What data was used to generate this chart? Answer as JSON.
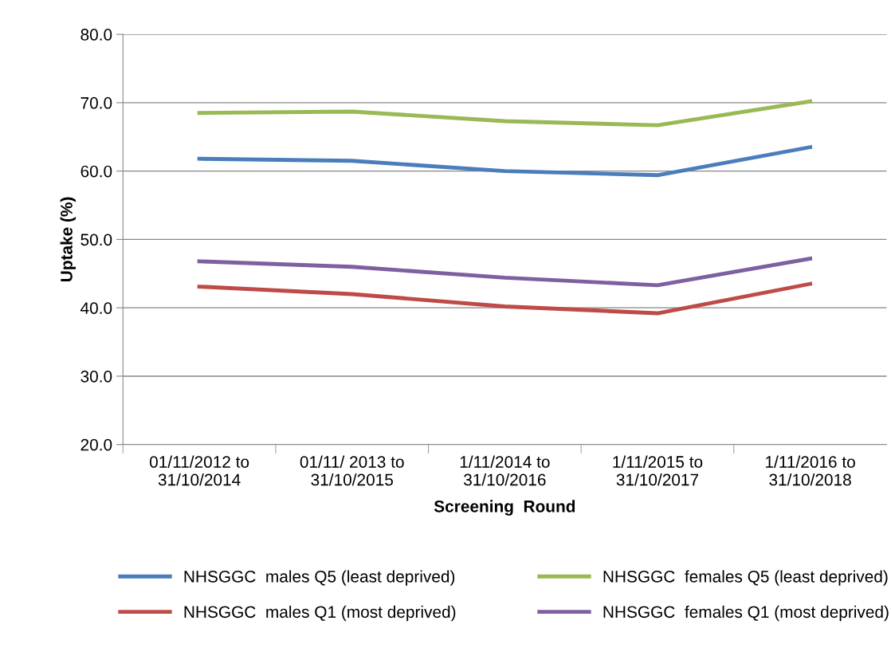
{
  "chart_data": {
    "type": "line",
    "xlabel": "Screening  Round",
    "ylabel": "Uptake (%)",
    "categories": [
      "01/11/2012 to\n31/10/2014",
      "01/11/ 2013 to\n31/10/2015",
      "1/11/2014 to\n31/10/2016",
      "1/11/2015 to\n31/10/2017",
      "1/11/2016 to\n31/10/2018"
    ],
    "series": [
      {
        "name": "NHSGGC  males Q5 (least deprived)",
        "color": "#4a7ebb",
        "values": [
          61.8,
          61.5,
          60.0,
          59.4,
          63.5
        ]
      },
      {
        "name": "NHSGGC  males Q1 (most deprived)",
        "color": "#be4b48",
        "values": [
          43.1,
          42.0,
          40.2,
          39.2,
          43.5
        ]
      },
      {
        "name": "NHSGGC  females Q5 (least deprived)",
        "color": "#98b954",
        "values": [
          68.5,
          68.7,
          67.3,
          66.7,
          70.2
        ]
      },
      {
        "name": "NHSGGC  females Q1 (most deprived)",
        "color": "#7d60a0",
        "values": [
          46.8,
          46.0,
          44.4,
          43.3,
          47.2
        ]
      }
    ],
    "ylim": [
      20,
      80
    ],
    "yticks": [
      {
        "value": 20,
        "label": "20.0"
      },
      {
        "value": 30,
        "label": "30.0"
      },
      {
        "value": 40,
        "label": "40.0"
      },
      {
        "value": 50,
        "label": "50.0"
      },
      {
        "value": 60,
        "label": "60.0"
      },
      {
        "value": 70,
        "label": "70.0"
      },
      {
        "value": 80,
        "label": "80.0"
      }
    ],
    "grid": "y",
    "legend": "bottom",
    "marker": "none",
    "line_style": "solid"
  }
}
